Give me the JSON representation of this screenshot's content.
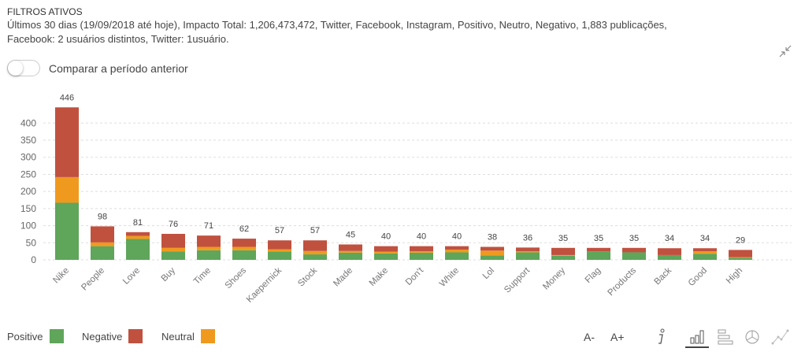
{
  "header": {
    "title": "FILTROS ATIVOS",
    "line1": "Últimos 30 dias (19/09/2018 até hoje), Impacto Total: 1,206,473,472, Twitter, Facebook, Instagram, Positivo, Neutro, Negativo, 1,883 publicações,",
    "line2": "Facebook: 2 usuários distintos, Twitter: 1usuário."
  },
  "compare": {
    "label": "Comparar a período anterior",
    "on": false
  },
  "toolbar": {
    "font_decrease": "A-",
    "font_increase": "A+",
    "icons": [
      "info-icon",
      "bar-chart-icon",
      "horizontal-bar-icon",
      "pie-chart-icon",
      "line-chart-icon"
    ],
    "active": "bar-chart-icon"
  },
  "colors": {
    "Positive": "#5fa55a",
    "Negative": "#c0513f",
    "Neutral": "#ef9a1f"
  },
  "chart_data": {
    "type": "bar",
    "stacked": true,
    "categories": [
      "Nike",
      "People",
      "Love",
      "Buy",
      "Time",
      "Shoes",
      "Kaepernick",
      "Stock",
      "Made",
      "Make",
      "Don't",
      "White",
      "Lol",
      "Support",
      "Money",
      "Flag",
      "Products",
      "Back",
      "Good",
      "High"
    ],
    "totals": [
      446,
      98,
      81,
      76,
      71,
      62,
      57,
      57,
      45,
      40,
      40,
      40,
      38,
      36,
      35,
      35,
      35,
      34,
      34,
      29
    ],
    "series": [
      {
        "name": "Positive",
        "values": [
          167,
          40,
          61,
          25,
          28,
          28,
          24,
          16,
          21,
          19,
          21,
          22,
          13,
          22,
          12,
          25,
          22,
          14,
          18,
          6
        ]
      },
      {
        "name": "Neutral",
        "values": [
          75,
          11,
          9,
          10,
          10,
          10,
          7,
          10,
          5,
          5,
          4,
          8,
          14,
          3,
          2,
          0,
          0,
          0,
          7,
          2
        ]
      },
      {
        "name": "Negative",
        "values": [
          204,
          47,
          11,
          41,
          33,
          24,
          26,
          31,
          19,
          16,
          15,
          10,
          11,
          11,
          21,
          10,
          13,
          20,
          9,
          21
        ]
      }
    ],
    "legend_order": [
      "Positive",
      "Negative",
      "Neutral"
    ],
    "yticks": [
      0,
      50,
      100,
      150,
      200,
      250,
      300,
      350,
      400
    ],
    "ylim": [
      0,
      446
    ],
    "grid": true,
    "legend": "bottom-left"
  }
}
